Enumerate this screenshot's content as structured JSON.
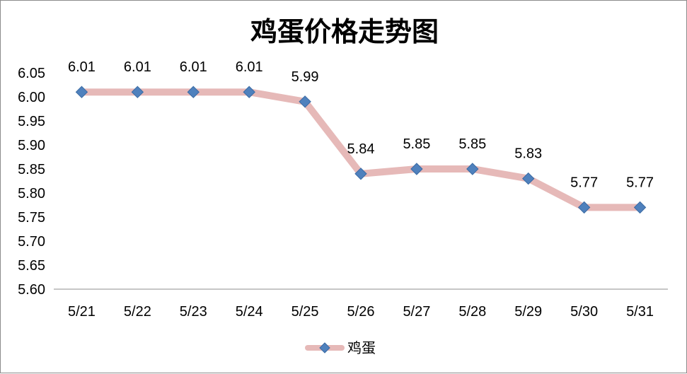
{
  "chart_data": {
    "type": "line",
    "title": "鸡蛋价格走势图",
    "categories": [
      "5/21",
      "5/22",
      "5/23",
      "5/24",
      "5/25",
      "5/26",
      "5/27",
      "5/28",
      "5/29",
      "5/30",
      "5/31"
    ],
    "series": [
      {
        "name": "鸡蛋",
        "values": [
          6.01,
          6.01,
          6.01,
          6.01,
          5.99,
          5.84,
          5.85,
          5.85,
          5.83,
          5.77,
          5.77
        ],
        "line_color": "#e6b9b8",
        "marker_color": "#4f81bd",
        "marker": "diamond"
      }
    ],
    "ylim": [
      5.6,
      6.05
    ],
    "yticks": [
      "5.60",
      "5.65",
      "5.70",
      "5.75",
      "5.80",
      "5.85",
      "5.90",
      "5.95",
      "6.00",
      "6.05"
    ],
    "xlabel": "",
    "ylabel": "",
    "grid": false,
    "legend": "bottom",
    "data_labels": true
  }
}
